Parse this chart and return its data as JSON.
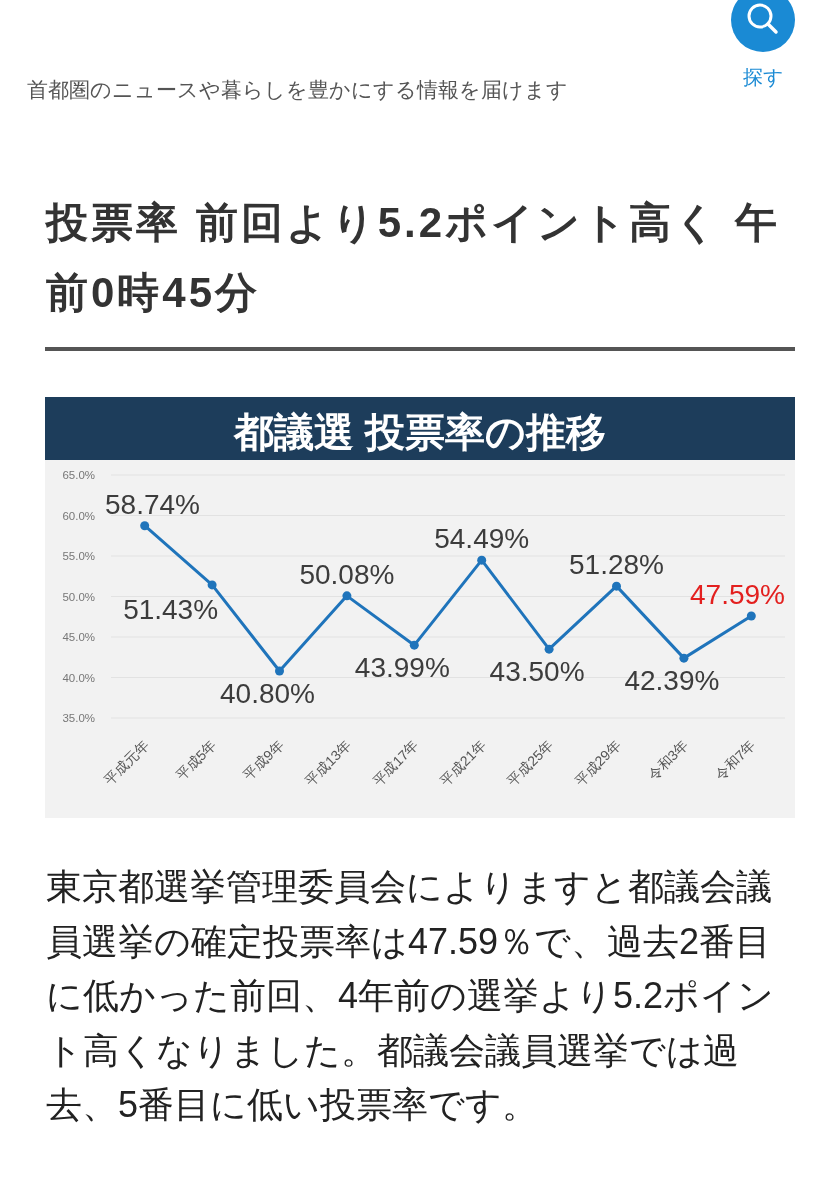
{
  "chart_data": {
    "type": "line",
    "title": "都議選 投票率の推移",
    "categories": [
      "平成元年",
      "平成5年",
      "平成9年",
      "平成13年",
      "平成17年",
      "平成21年",
      "平成25年",
      "平成29年",
      "令和3年",
      "令和7年"
    ],
    "series": [
      {
        "color": "#1f74bb",
        "values": [
          58.74,
          51.43,
          40.8,
          50.08,
          43.99,
          54.49,
          43.5,
          51.28,
          42.39,
          47.59
        ],
        "value_labels": [
          "58.74%",
          "51.43%",
          "40.80%",
          "50.08%",
          "43.99%",
          "54.49%",
          "43.50%",
          "51.28%",
          "42.39%",
          null
        ]
      }
    ],
    "ylim": [
      35,
      65
    ],
    "yticks": [
      {
        "value": 35,
        "label": "35.0%"
      },
      {
        "value": 40,
        "label": "40.0%"
      },
      {
        "value": 45,
        "label": "45.0%"
      },
      {
        "value": 50,
        "label": "50.0%"
      },
      {
        "value": 55,
        "label": "55.0%"
      },
      {
        "value": 60,
        "label": "60.0%"
      },
      {
        "value": 65,
        "label": "65.0%"
      }
    ],
    "grid": "y",
    "marker": "circle",
    "line_style": "solid",
    "annotations": [
      "首都圏のニュースや暮らしを豊かにする情報を届けます",
      "探す",
      "投票率 前回より5.2ポイント高く 午前0時45分",
      "東京都選挙管理委員会によりますと都議会議員選挙の確定投票率は47.59％で、過去2番目に低かった前回、4年前の選挙より5.2ポイント高くなりました。都議会議員選挙では過去、5番目に低い投票率です。",
      {
        "text": "47.59%",
        "x": "令和7年",
        "y": 47.59
      }
    ]
  }
}
